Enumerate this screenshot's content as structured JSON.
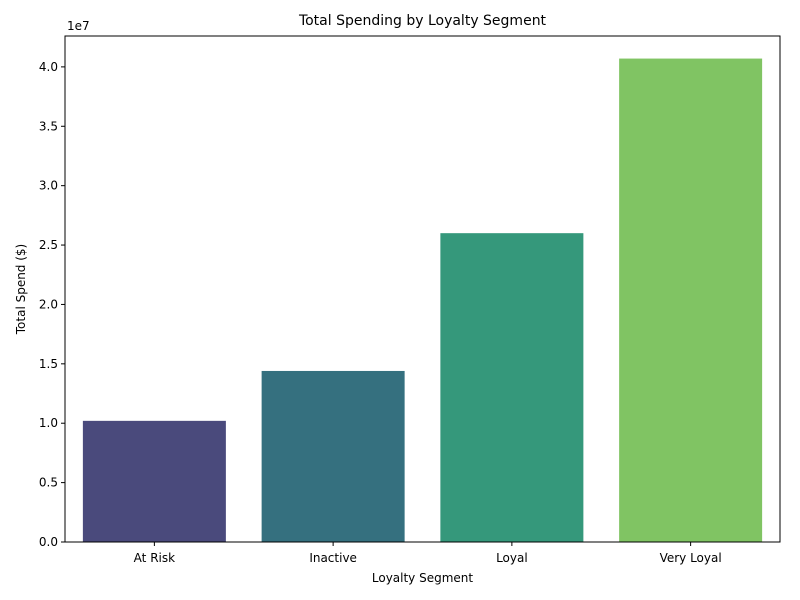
{
  "chart_data": {
    "type": "bar",
    "title": "Total Spending by Loyalty Segment",
    "xlabel": "Loyalty Segment",
    "ylabel": "Total Spend ($)",
    "y_offset_label": "1e7",
    "categories": [
      "At Risk",
      "Inactive",
      "Loyal",
      "Very Loyal"
    ],
    "values": [
      10200000,
      14400000,
      26000000,
      40700000
    ],
    "colors": [
      "#4a4a7c",
      "#35707f",
      "#35987b",
      "#80c463"
    ],
    "ylim": [
      0,
      42600000
    ],
    "y_ticks": [
      0,
      5000000,
      10000000,
      15000000,
      20000000,
      25000000,
      30000000,
      35000000,
      40000000
    ],
    "y_tick_labels": [
      "0.0",
      "0.5",
      "1.0",
      "1.5",
      "2.0",
      "2.5",
      "3.0",
      "3.5",
      "4.0"
    ],
    "grid": false,
    "legend": "none"
  }
}
